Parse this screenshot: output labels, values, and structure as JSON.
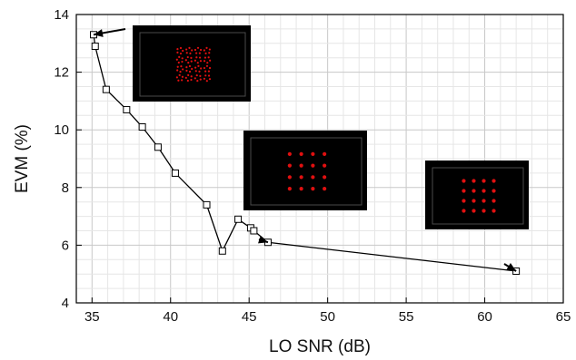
{
  "chart_data": {
    "type": "scatter",
    "title": "",
    "xlabel": "LO SNR (dB)",
    "ylabel": "EVM (%)",
    "xlim": [
      34,
      65
    ],
    "ylim": [
      4,
      14
    ],
    "x_ticks": [
      35,
      40,
      45,
      50,
      55,
      60,
      65
    ],
    "y_ticks": [
      4,
      6,
      8,
      10,
      12,
      14
    ],
    "grid": true,
    "series": [
      {
        "marker": "open-square",
        "line": true,
        "color": "#000000",
        "points": [
          {
            "x": 35.1,
            "y": 13.3
          },
          {
            "x": 35.2,
            "y": 12.9
          },
          {
            "x": 35.9,
            "y": 11.4
          },
          {
            "x": 37.2,
            "y": 10.7
          },
          {
            "x": 38.2,
            "y": 10.1
          },
          {
            "x": 39.2,
            "y": 9.4
          },
          {
            "x": 40.3,
            "y": 8.5
          },
          {
            "x": 42.3,
            "y": 7.4
          },
          {
            "x": 43.3,
            "y": 5.8
          },
          {
            "x": 44.3,
            "y": 6.9
          },
          {
            "x": 45.1,
            "y": 6.6
          },
          {
            "x": 45.3,
            "y": 6.5
          },
          {
            "x": 46.2,
            "y": 6.1
          },
          {
            "x": 62.0,
            "y": 5.1
          }
        ]
      }
    ],
    "insets": [
      {
        "name": "constellation-inset-1",
        "pattern": "scattered",
        "points_to": {
          "x": 35.1,
          "y": 13.3
        }
      },
      {
        "name": "constellation-inset-2",
        "pattern": "4x4-grid",
        "points_to": {
          "x": 46.2,
          "y": 6.1
        }
      },
      {
        "name": "constellation-inset-3",
        "pattern": "4x4-grid",
        "points_to": {
          "x": 62.0,
          "y": 5.1
        }
      }
    ],
    "inset_background": "#000000",
    "constellation_color": "#e01010"
  }
}
